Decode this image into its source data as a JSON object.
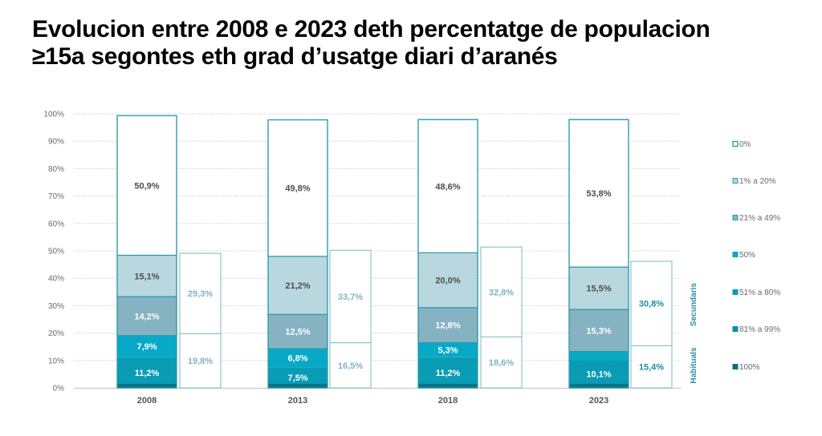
{
  "title": {
    "line1": "Evolucion entre 2008 e 2023 deth percentatge de populacion",
    "line2": "≥15a segontes eth grad d’usatge diari d’aranés"
  },
  "chart_data": {
    "type": "bar",
    "stacked": true,
    "title": "Evolucion entre 2008 e 2023 deth percentatge de populacion ≥15a segontes eth grad d’usatge diari d’aranés",
    "xlabel": "",
    "ylabel": "",
    "ylim": [
      0,
      100
    ],
    "yticks": [
      "0%",
      "10%",
      "20%",
      "30%",
      "40%",
      "50%",
      "60%",
      "70%",
      "80%",
      "90%",
      "100%"
    ],
    "grid": true,
    "categories": [
      "2008",
      "2013",
      "2018",
      "2023"
    ],
    "legend_position": "right",
    "legend": [
      {
        "name": "0%",
        "color": "#ffffff",
        "border": "#2a9aa8"
      },
      {
        "name": "1% a 20%",
        "color": "#b9d7de",
        "border": "#2a9aa8"
      },
      {
        "name": "21% a 49%",
        "color": "#86b3c2",
        "border": "#2a9aa8"
      },
      {
        "name": "50%",
        "color": "#08a9c6",
        "border": "#08a9c6"
      },
      {
        "name": "51% a 80%",
        "color": "#0a9bb5",
        "border": "#0a9bb5"
      },
      {
        "name": "81% a 99%",
        "color": "#0a8da6",
        "border": "#0a8da6"
      },
      {
        "name": "100%",
        "color": "#0a6e80",
        "border": "#0a6e80"
      }
    ],
    "series": [
      {
        "name": "Habituals (bottom block)",
        "values": [
          11.2,
          7.5,
          11.2,
          10.1
        ],
        "labels": [
          "11,2%",
          "7,5%",
          "11,2%",
          "10,1%"
        ],
        "color": "#0a9bb5",
        "label_color": "#ffffff"
      },
      {
        "name": "50%",
        "values": [
          7.9,
          6.8,
          5.3,
          3.2
        ],
        "labels": [
          "7,9%",
          "6,8%",
          "5,3%",
          ""
        ],
        "color": "#08a9c6",
        "label_color": "#ffffff"
      },
      {
        "name": "21% a 49%",
        "values": [
          14.2,
          12.5,
          12.8,
          15.3
        ],
        "labels": [
          "14,2%",
          "12,5%",
          "12,8%",
          "15,3%"
        ],
        "color": "#86b3c2",
        "label_color": "#ffffff"
      },
      {
        "name": "1% a 20%",
        "values": [
          15.1,
          21.2,
          20.0,
          15.5
        ],
        "labels": [
          "15,1%",
          "21,2%",
          "20,0%",
          "15,5%"
        ],
        "color": "#b9d7de",
        "label_color": "#4d4d4d"
      },
      {
        "name": "0%",
        "values": [
          50.9,
          49.8,
          48.6,
          53.8
        ],
        "labels": [
          "50,9%",
          "49,8%",
          "48,6%",
          "53,8%"
        ],
        "color": "#ffffff",
        "label_color": "#4d4d4d"
      }
    ],
    "bottom_band": {
      "name": "100%",
      "values": [
        1.5,
        1.5,
        1.5,
        1.5
      ],
      "color": "#0a7486"
    },
    "side_bars": {
      "habituals": {
        "name": "Habituals",
        "values": [
          19.8,
          16.5,
          18.6,
          15.4
        ],
        "labels": [
          "19,8%",
          "16,5%",
          "18,6%",
          "15,4%"
        ]
      },
      "secundaris": {
        "name": "Secundaris",
        "values": [
          29.3,
          33.7,
          32.8,
          30.8
        ],
        "labels": [
          "29,3%",
          "33,7%",
          "32,8%",
          "30,8%"
        ]
      },
      "label_colors": [
        "#7fb3c2",
        "#7fb3c2",
        "#7fb3c2",
        "#1f8fa3"
      ]
    },
    "group_labels": {
      "secundaris": "Secundaris",
      "habituals": "Habituals"
    }
  }
}
